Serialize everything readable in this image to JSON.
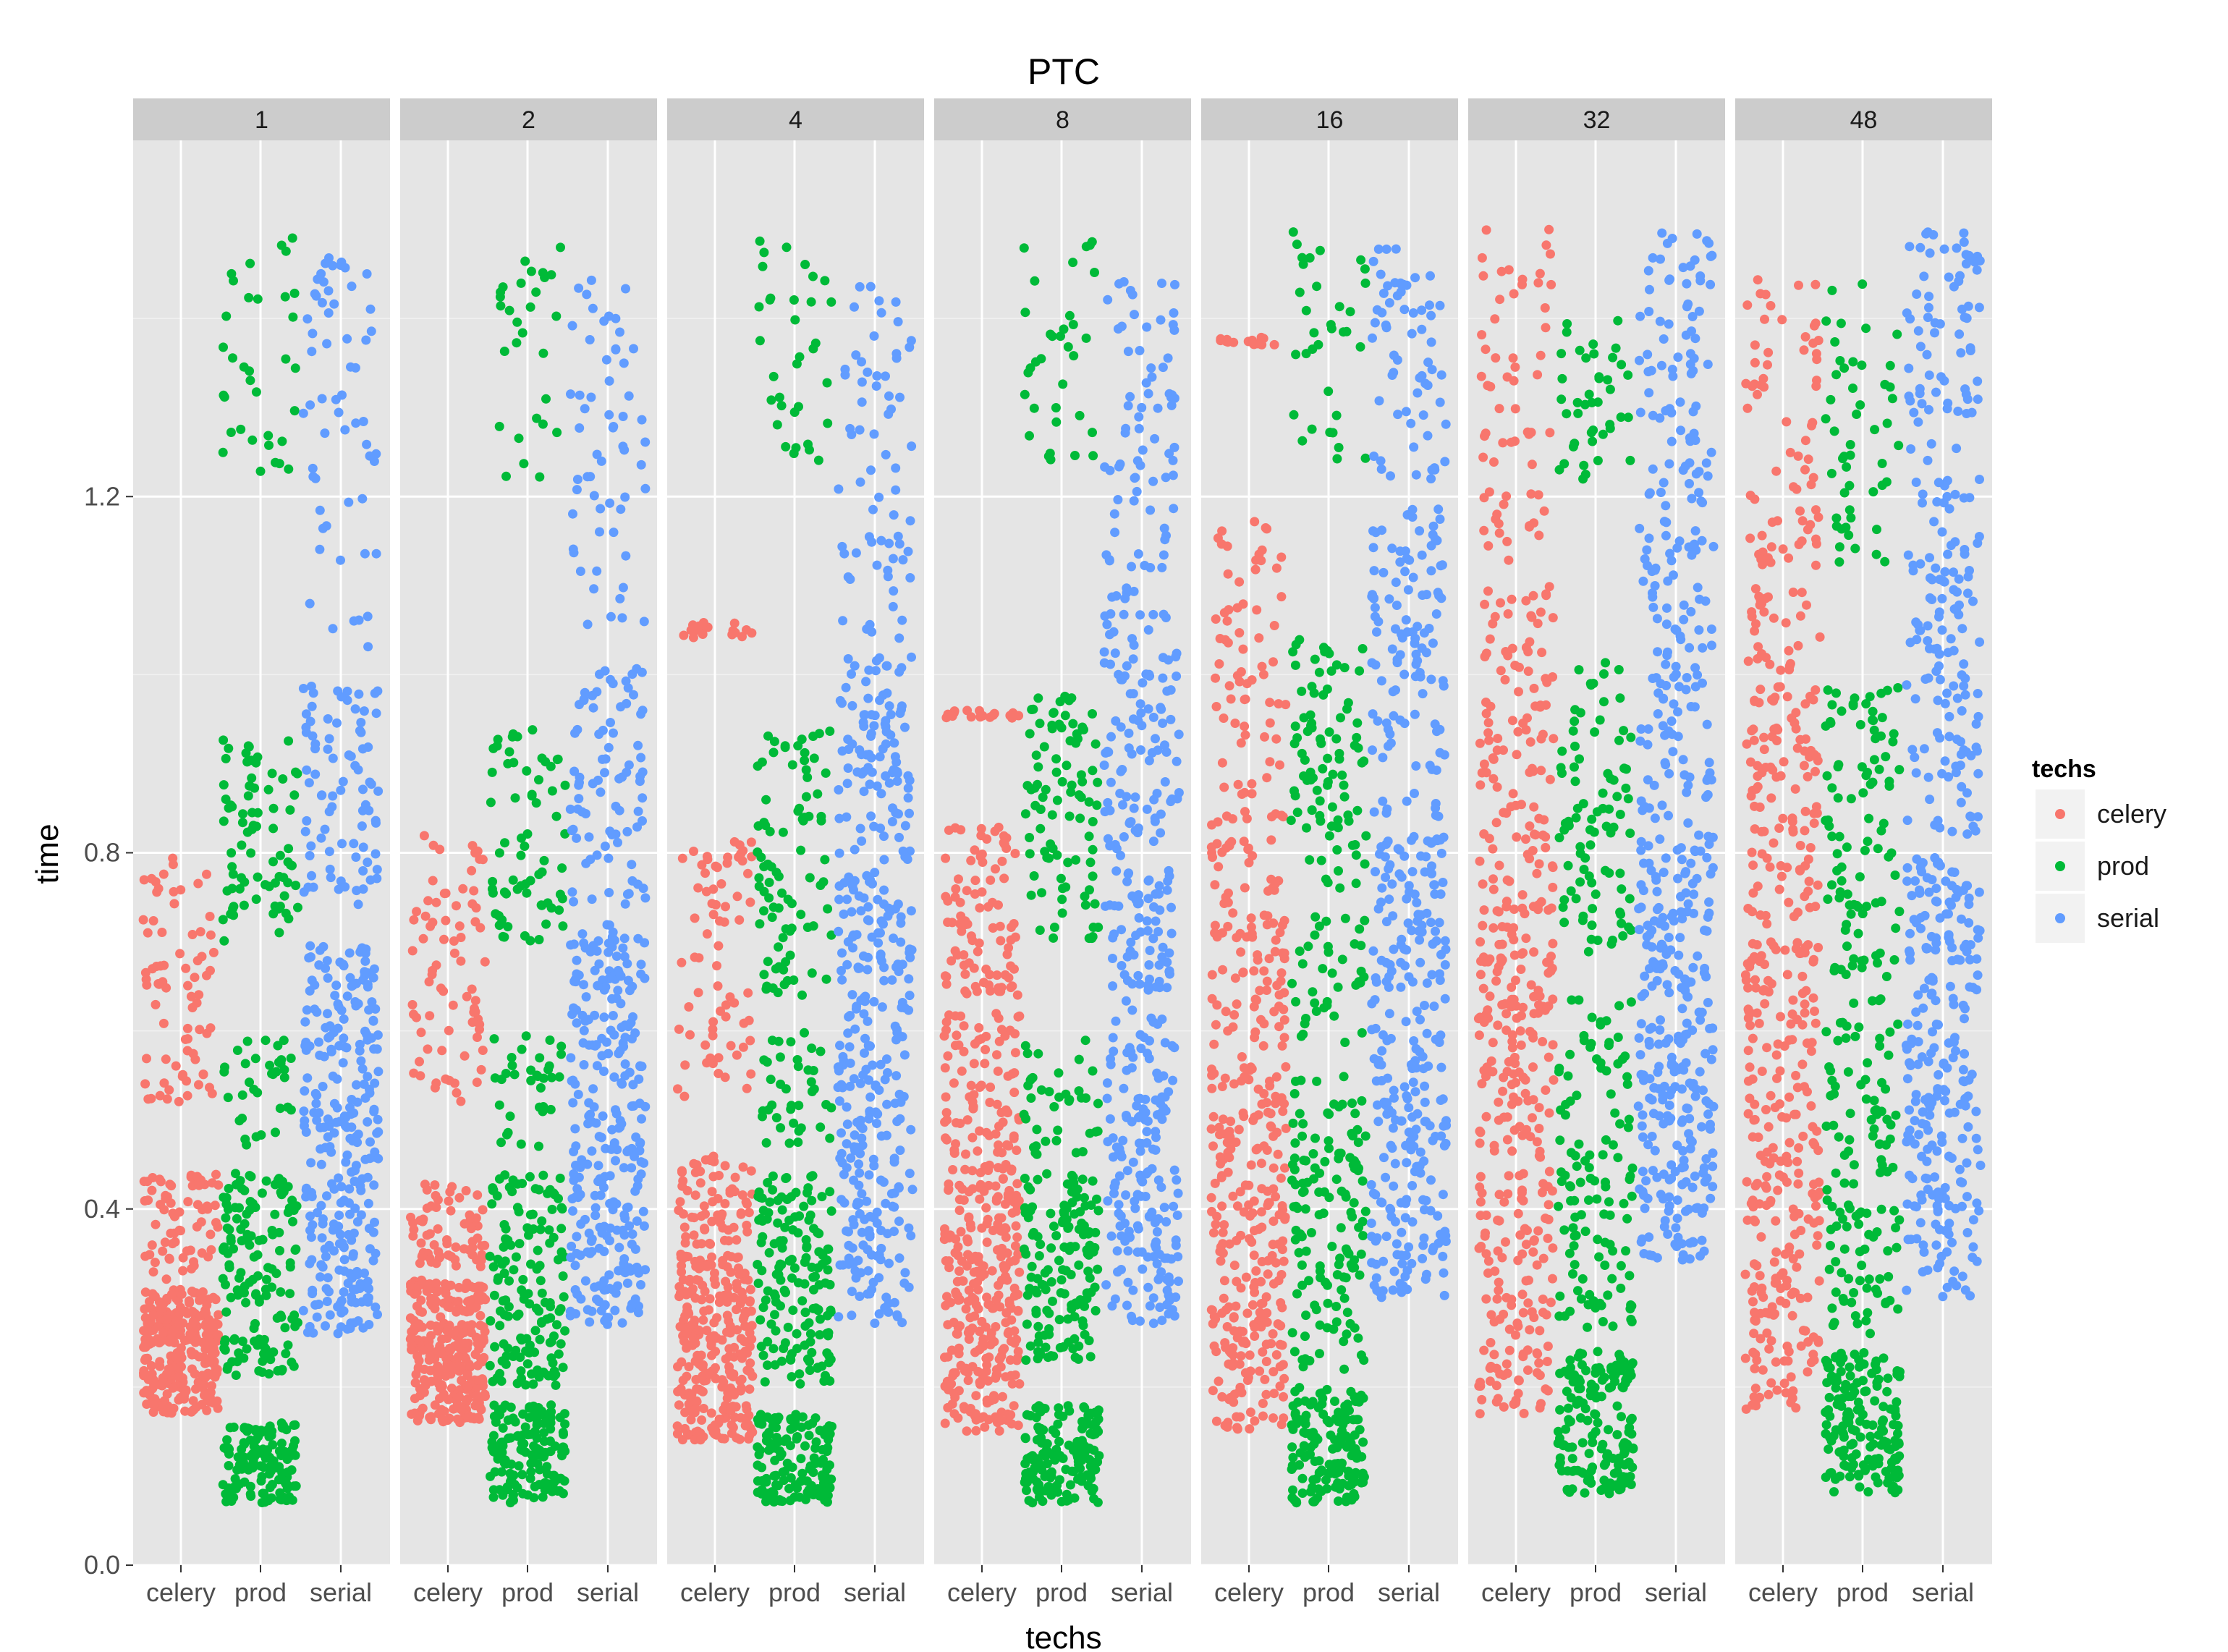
{
  "chart_data": {
    "type": "scatter",
    "title": "PTC",
    "xlabel": "techs",
    "ylabel": "time",
    "facets": [
      "1",
      "2",
      "4",
      "8",
      "16",
      "32",
      "48"
    ],
    "categories": [
      "celery",
      "prod",
      "serial"
    ],
    "ylim": [
      0,
      1.6
    ],
    "yticks": [
      "0.0",
      "0.4",
      "0.8",
      "1.2"
    ],
    "grid": true,
    "legend": {
      "title": "techs",
      "position": "right",
      "entries": [
        {
          "label": "celery",
          "color": "#F8766D"
        },
        {
          "label": "prod",
          "color": "#00BA38"
        },
        {
          "label": "serial",
          "color": "#619CFF"
        }
      ]
    },
    "colors": {
      "celery": "#F8766D",
      "prod": "#00BA38",
      "serial": "#619CFF",
      "panel_bg": "#E5E5E5",
      "strip_bg": "#CCCCCC",
      "grid": "#FFFFFF"
    },
    "series_summary": [
      {
        "facet": "1",
        "category": "celery",
        "clusters": [
          [
            0.17,
            0.31,
            0.65
          ],
          [
            0.32,
            0.44,
            0.17
          ],
          [
            0.52,
            0.8,
            0.18
          ]
        ]
      },
      {
        "facet": "1",
        "category": "prod",
        "clusters": [
          [
            0.07,
            0.16,
            0.3
          ],
          [
            0.21,
            0.44,
            0.35
          ],
          [
            0.47,
            0.59,
            0.08
          ],
          [
            0.7,
            0.93,
            0.19
          ],
          [
            1.22,
            1.5,
            0.08
          ]
        ]
      },
      {
        "facet": "1",
        "category": "serial",
        "clusters": [
          [
            0.26,
            0.7,
            0.66
          ],
          [
            0.74,
            0.99,
            0.2
          ],
          [
            1.02,
            1.47,
            0.14
          ]
        ]
      },
      {
        "facet": "2",
        "category": "celery",
        "clusters": [
          [
            0.16,
            0.32,
            0.66
          ],
          [
            0.33,
            0.43,
            0.16
          ],
          [
            0.52,
            0.82,
            0.18
          ]
        ]
      },
      {
        "facet": "2",
        "category": "prod",
        "clusters": [
          [
            0.07,
            0.18,
            0.34
          ],
          [
            0.2,
            0.44,
            0.35
          ],
          [
            0.47,
            0.6,
            0.08
          ],
          [
            0.7,
            0.94,
            0.16
          ],
          [
            1.22,
            1.48,
            0.07
          ]
        ]
      },
      {
        "facet": "2",
        "category": "serial",
        "clusters": [
          [
            0.27,
            0.72,
            0.66
          ],
          [
            0.74,
            1.01,
            0.2
          ],
          [
            1.05,
            1.45,
            0.14
          ]
        ]
      },
      {
        "facet": "4",
        "category": "celery",
        "clusters": [
          [
            0.14,
            0.35,
            0.62
          ],
          [
            0.36,
            0.46,
            0.17
          ],
          [
            0.5,
            0.82,
            0.17
          ],
          [
            1.04,
            1.06,
            0.04
          ]
        ]
      },
      {
        "facet": "4",
        "category": "prod",
        "clusters": [
          [
            0.07,
            0.17,
            0.33
          ],
          [
            0.2,
            0.44,
            0.36
          ],
          [
            0.47,
            0.6,
            0.09
          ],
          [
            0.64,
            0.95,
            0.21
          ],
          [
            1.24,
            1.5,
            0.08
          ]
        ]
      },
      {
        "facet": "4",
        "category": "serial",
        "clusters": [
          [
            0.27,
            0.78,
            0.62
          ],
          [
            0.79,
            1.02,
            0.24
          ],
          [
            1.04,
            1.44,
            0.16
          ]
        ]
      },
      {
        "facet": "8",
        "category": "celery",
        "clusters": [
          [
            0.15,
            0.45,
            0.66
          ],
          [
            0.46,
            0.62,
            0.2
          ],
          [
            0.64,
            0.83,
            0.22
          ],
          [
            0.95,
            0.96,
            0.04
          ]
        ]
      },
      {
        "facet": "8",
        "category": "prod",
        "clusters": [
          [
            0.07,
            0.18,
            0.35
          ],
          [
            0.23,
            0.44,
            0.33
          ],
          [
            0.46,
            0.59,
            0.09
          ],
          [
            0.7,
            0.98,
            0.22
          ],
          [
            1.24,
            1.49,
            0.08
          ]
        ]
      },
      {
        "facet": "8",
        "category": "serial",
        "clusters": [
          [
            0.27,
            0.78,
            0.58
          ],
          [
            0.79,
            1.1,
            0.26
          ],
          [
            1.12,
            1.45,
            0.17
          ]
        ]
      },
      {
        "facet": "16",
        "category": "celery",
        "clusters": [
          [
            0.15,
            0.56,
            0.58
          ],
          [
            0.57,
            0.85,
            0.26
          ],
          [
            0.86,
            1.18,
            0.16
          ],
          [
            1.37,
            1.38,
            0.04
          ]
        ]
      },
      {
        "facet": "16",
        "category": "prod",
        "clusters": [
          [
            0.07,
            0.2,
            0.36
          ],
          [
            0.22,
            0.55,
            0.32
          ],
          [
            0.58,
            0.73,
            0.09
          ],
          [
            0.76,
            1.04,
            0.22
          ],
          [
            1.24,
            1.5,
            0.08
          ]
        ]
      },
      {
        "facet": "16",
        "category": "serial",
        "clusters": [
          [
            0.3,
            0.82,
            0.61
          ],
          [
            0.84,
            1.19,
            0.27
          ],
          [
            1.22,
            1.48,
            0.15
          ]
        ]
      },
      {
        "facet": "32",
        "category": "celery",
        "clusters": [
          [
            0.17,
            0.72,
            0.62
          ],
          [
            0.73,
            1.1,
            0.3
          ],
          [
            1.12,
            1.5,
            0.15
          ]
        ]
      },
      {
        "facet": "32",
        "category": "prod",
        "clusters": [
          [
            0.08,
            0.24,
            0.37
          ],
          [
            0.26,
            0.64,
            0.28
          ],
          [
            0.68,
            1.02,
            0.21
          ],
          [
            1.2,
            1.4,
            0.1
          ]
        ]
      },
      {
        "facet": "32",
        "category": "serial",
        "clusters": [
          [
            0.34,
            0.82,
            0.63
          ],
          [
            0.83,
            1.25,
            0.31
          ],
          [
            1.26,
            1.5,
            0.15
          ]
        ]
      },
      {
        "facet": "48",
        "category": "celery",
        "clusters": [
          [
            0.17,
            0.7,
            0.58
          ],
          [
            0.72,
            1.1,
            0.33
          ],
          [
            1.12,
            1.45,
            0.17
          ]
        ]
      },
      {
        "facet": "48",
        "category": "prod",
        "clusters": [
          [
            0.08,
            0.24,
            0.39
          ],
          [
            0.26,
            0.64,
            0.28
          ],
          [
            0.66,
            1.0,
            0.23
          ],
          [
            1.12,
            1.44,
            0.12
          ]
        ]
      },
      {
        "facet": "48",
        "category": "serial",
        "clusters": [
          [
            0.3,
            0.8,
            0.57
          ],
          [
            0.82,
            1.22,
            0.31
          ],
          [
            1.24,
            1.5,
            0.17
          ]
        ]
      }
    ]
  }
}
